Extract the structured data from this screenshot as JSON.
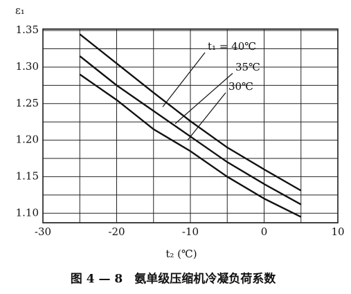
{
  "chart_data": {
    "type": "line",
    "y_label": "ε₁",
    "x_label": "t₂ (℃)",
    "caption": "图 4 — 8　氨单级压缩机冷凝负荷系数",
    "x": [
      -25,
      -20,
      -15,
      -10,
      -5,
      0,
      5
    ],
    "series": [
      {
        "name": "t₁ = 40℃",
        "color": "#111111",
        "values": [
          1.345,
          1.305,
          1.265,
          1.226,
          1.19,
          1.16,
          1.131
        ]
      },
      {
        "name": "35℃",
        "color": "#111111",
        "values": [
          1.315,
          1.275,
          1.24,
          1.205,
          1.17,
          1.14,
          1.112
        ]
      },
      {
        "name": "30℃",
        "color": "#111111",
        "values": [
          1.29,
          1.255,
          1.215,
          1.185,
          1.15,
          1.12,
          1.095
        ]
      }
    ],
    "xlim": [
      -30,
      10
    ],
    "xticks": [
      -30,
      -20,
      -10,
      0,
      10
    ],
    "minor_xticks": [
      -25,
      -15,
      -5,
      5
    ],
    "ylim": [
      1.087,
      1.352
    ],
    "yticks": [
      {
        "value": 1.1,
        "label": "1.10"
      },
      1.15,
      {
        "value": 1.2,
        "label": "1.20"
      },
      1.25,
      {
        "value": 1.3,
        "label": "1.30"
      },
      1.35
    ],
    "minor_yticks": [
      1.125,
      1.175,
      1.225,
      1.275,
      1.325
    ],
    "grid": true
  }
}
